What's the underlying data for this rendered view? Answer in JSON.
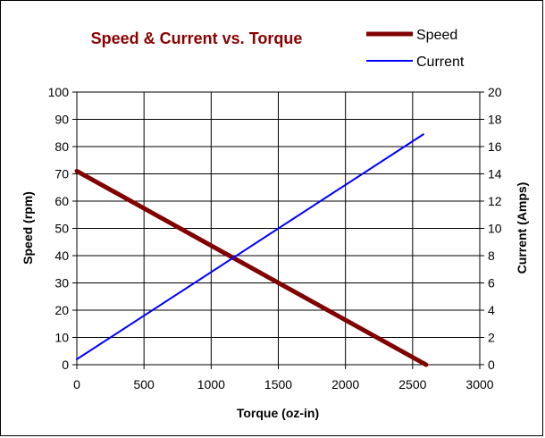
{
  "chart_data": {
    "type": "line",
    "title": "Speed & Current vs. Torque",
    "xlabel": "Torque (oz-in)",
    "ylabel": "Speed (rpm)",
    "y2label": "Current (Amps)",
    "xlim": [
      0,
      3000
    ],
    "ylim": [
      0,
      100
    ],
    "y2lim": [
      0,
      20
    ],
    "xticks": [
      "0",
      "500",
      "1000",
      "1500",
      "2000",
      "2500",
      "3000"
    ],
    "yticks": [
      "0",
      "10",
      "20",
      "30",
      "40",
      "50",
      "60",
      "70",
      "80",
      "90",
      "100"
    ],
    "y2ticks": [
      "0",
      "2",
      "4",
      "6",
      "8",
      "10",
      "12",
      "14",
      "16",
      "18",
      "20"
    ],
    "grid": true,
    "legend": "top-right",
    "series": [
      {
        "name": "Speed",
        "axis": "left",
        "color": "#800000",
        "points": [
          [
            0,
            71
          ],
          [
            2600,
            0
          ]
        ]
      },
      {
        "name": "Current",
        "axis": "right",
        "color": "#0000ff",
        "points": [
          [
            0,
            0.4
          ],
          [
            2580,
            16.9
          ]
        ]
      }
    ],
    "title_color": "#8b0000"
  }
}
